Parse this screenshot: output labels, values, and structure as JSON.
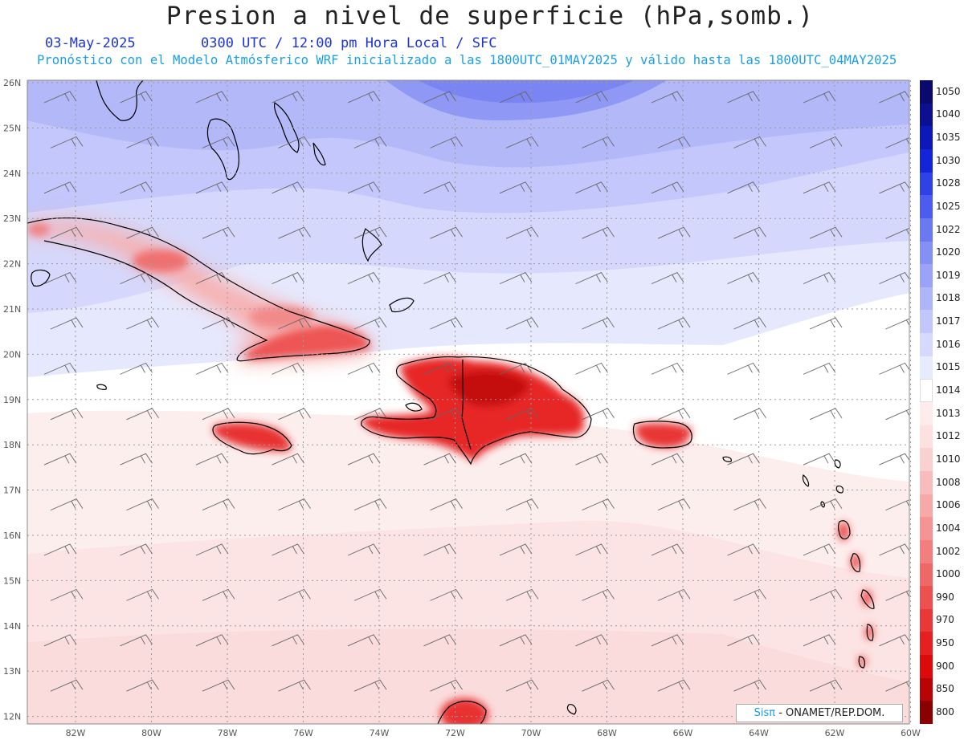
{
  "header": {
    "title": "Presion a nivel de superficie (hPa,somb.)",
    "date": "03-May-2025",
    "time": "0300 UTC / 12:00 pm Hora Local / SFC",
    "subtitle": "Pronóstico con el Modelo Atmósferico WRF inicializado a las 1800UTC_01MAY2025 y válido hasta las  1800UTC_04MAY2025"
  },
  "map": {
    "lat_labels": [
      "26N",
      "25N",
      "24N",
      "23N",
      "22N",
      "21N",
      "20N",
      "19N",
      "18N",
      "17N",
      "16N",
      "15N",
      "14N",
      "13N",
      "12N"
    ],
    "lon_labels": [
      "82W",
      "80W",
      "78W",
      "76W",
      "74W",
      "72W",
      "70W",
      "68W",
      "66W",
      "64W",
      "62W",
      "60W"
    ]
  },
  "legend": {
    "levels": [
      {
        "label": "1050",
        "color": "#0a0a6e"
      },
      {
        "label": "1040",
        "color": "#0a108f"
      },
      {
        "label": "1035",
        "color": "#0c18b8"
      },
      {
        "label": "1030",
        "color": "#1226d8"
      },
      {
        "label": "1028",
        "color": "#2f42e6"
      },
      {
        "label": "1025",
        "color": "#4c5cee"
      },
      {
        "label": "1022",
        "color": "#6a78f2"
      },
      {
        "label": "1020",
        "color": "#8590f5"
      },
      {
        "label": "1019",
        "color": "#9aa3f7"
      },
      {
        "label": "1018",
        "color": "#aeb5f9"
      },
      {
        "label": "1017",
        "color": "#c2c7fb"
      },
      {
        "label": "1016",
        "color": "#d6d9fc"
      },
      {
        "label": "1015",
        "color": "#e8eafd"
      },
      {
        "label": "1014",
        "color": "#ffffff"
      },
      {
        "label": "1013",
        "color": "#fdecec"
      },
      {
        "label": "1012",
        "color": "#fde0e0"
      },
      {
        "label": "1010",
        "color": "#fbd0d0"
      },
      {
        "label": "1008",
        "color": "#f9bcbc"
      },
      {
        "label": "1006",
        "color": "#f7a8a8"
      },
      {
        "label": "1004",
        "color": "#f59494"
      },
      {
        "label": "1002",
        "color": "#f27e7e"
      },
      {
        "label": "1000",
        "color": "#ef6868"
      },
      {
        "label": "990",
        "color": "#ec5050"
      },
      {
        "label": "970",
        "color": "#e83838"
      },
      {
        "label": "950",
        "color": "#e42020"
      },
      {
        "label": "900",
        "color": "#dc0a0a"
      },
      {
        "label": "850",
        "color": "#b80404"
      },
      {
        "label": "800",
        "color": "#8a0000"
      }
    ]
  },
  "credit": {
    "brand": "Sisπ",
    "text": " - ONAMET/REP.DOM."
  }
}
